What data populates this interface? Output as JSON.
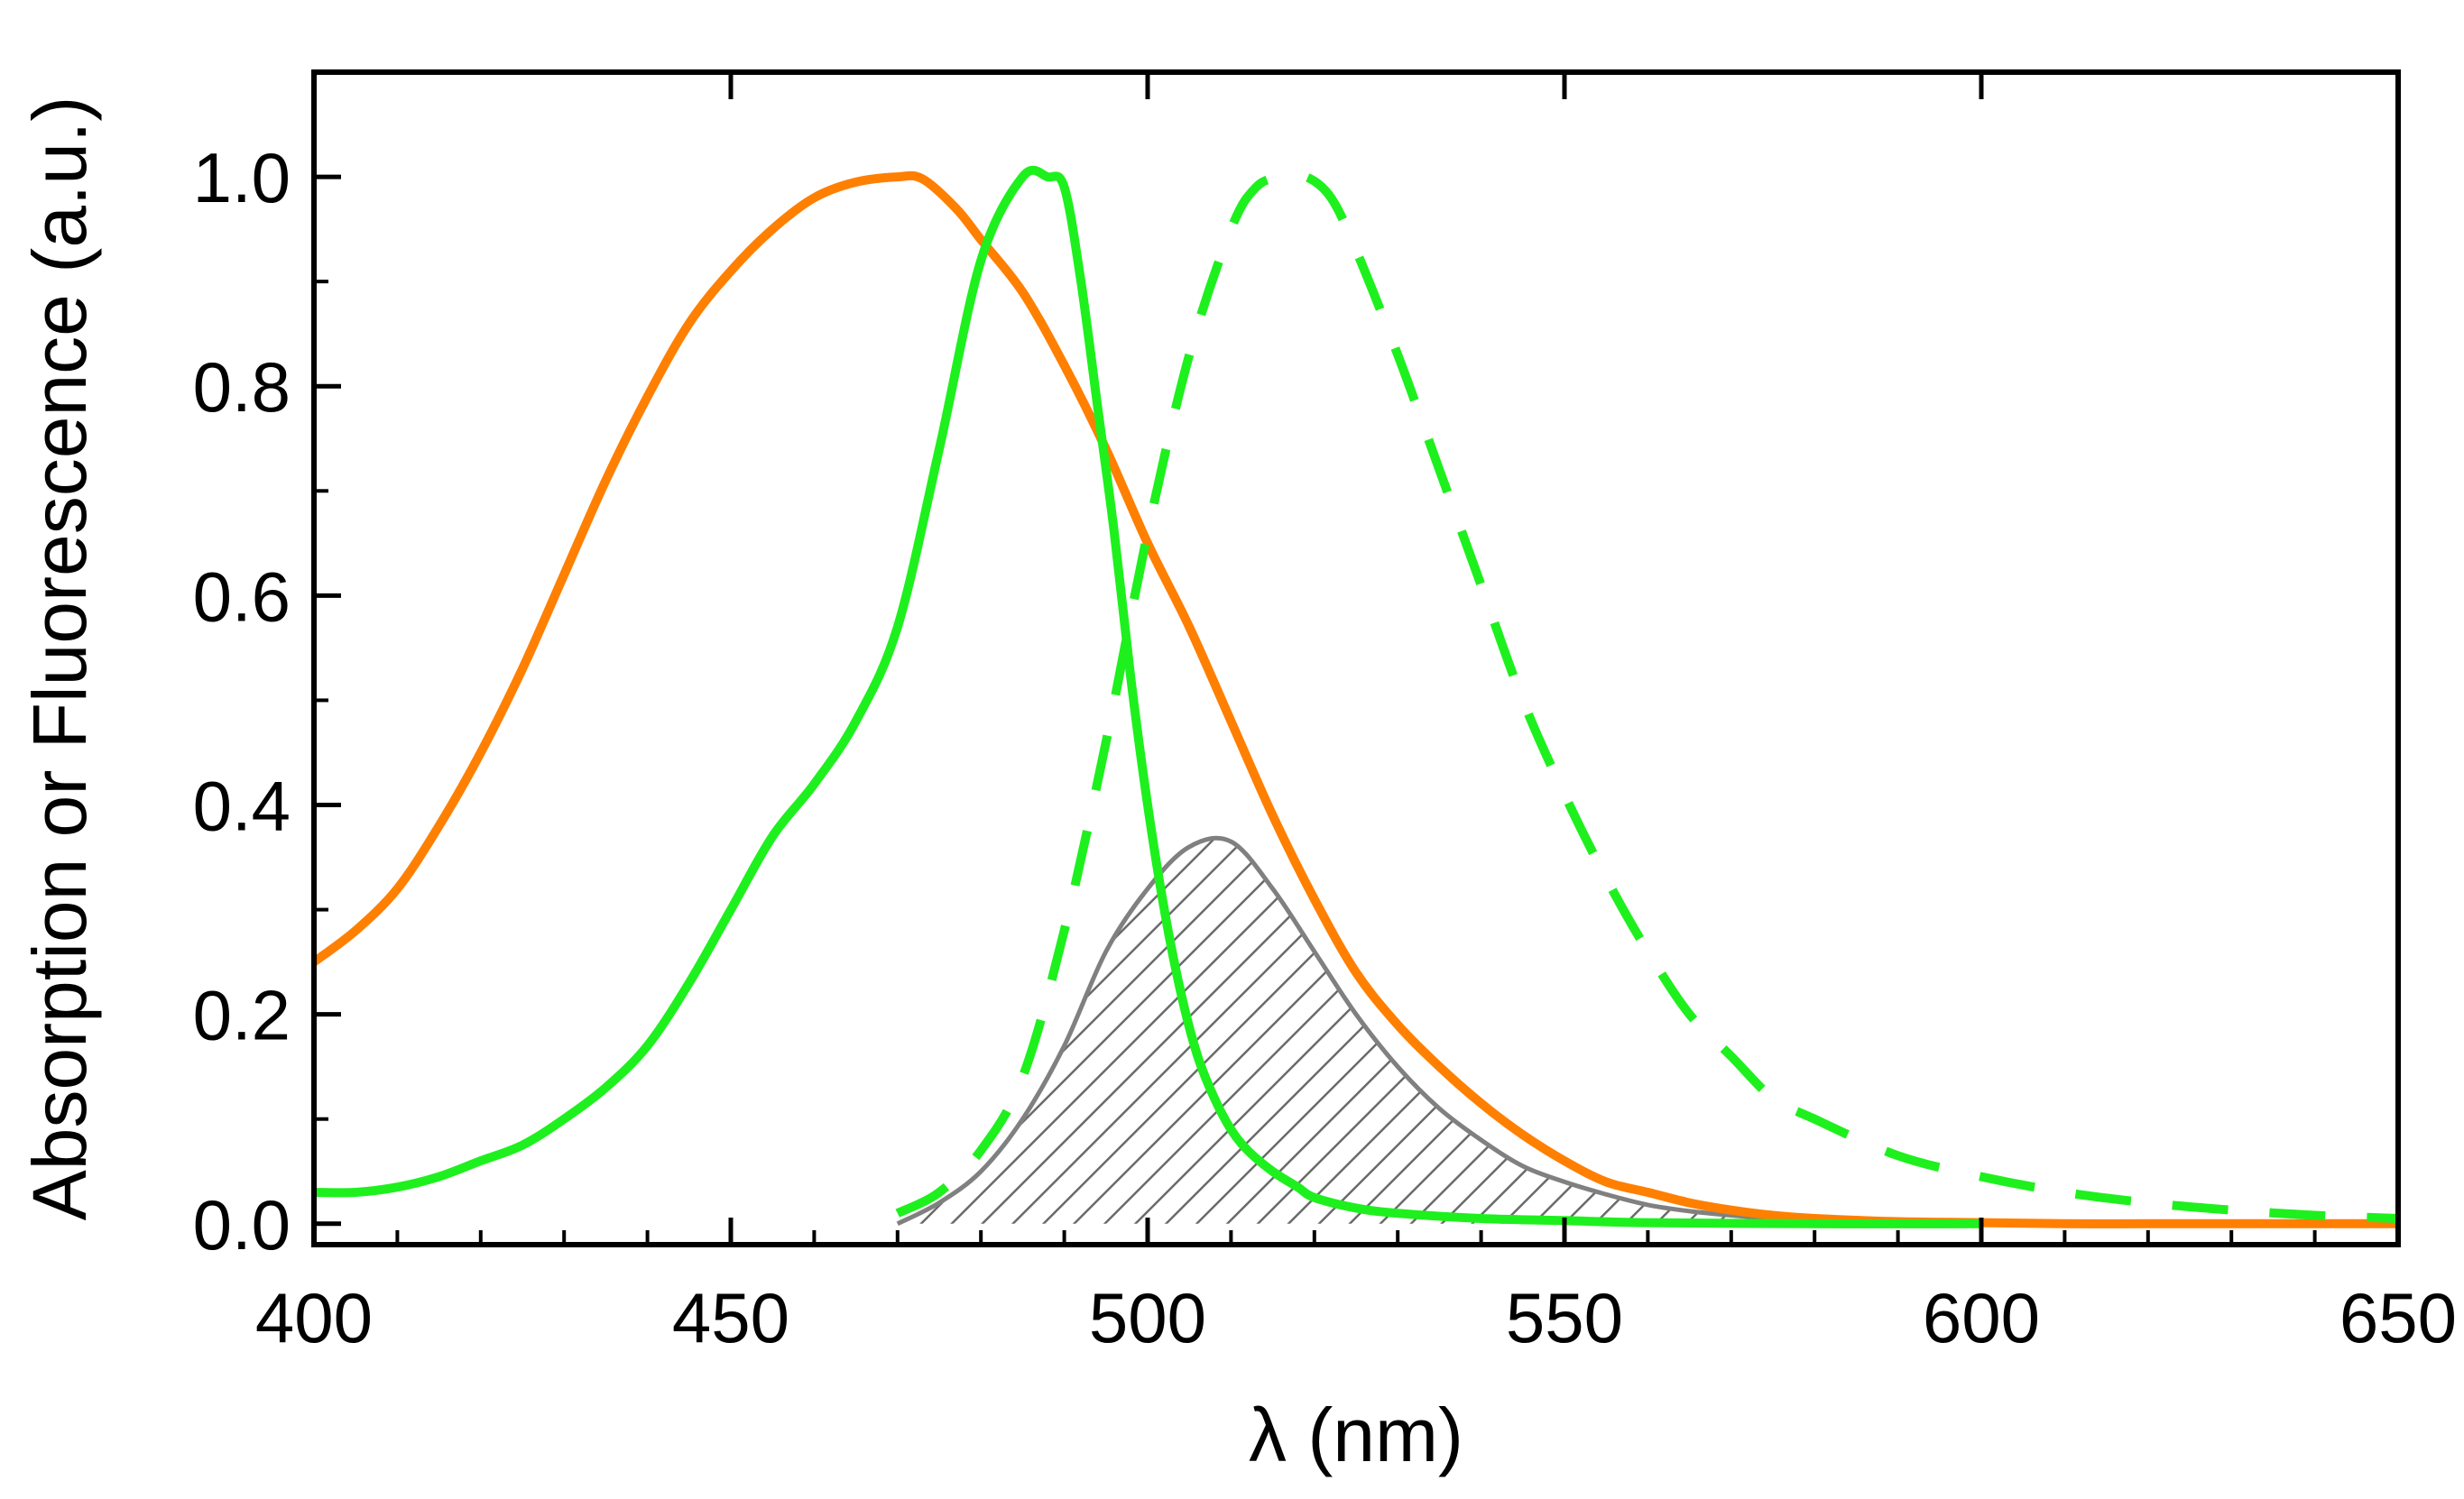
{
  "chart_data": {
    "type": "line",
    "title": "",
    "xlabel": "λ (nm)",
    "ylabel": "Absorption or Fluorescence (a.u.)",
    "xlim": [
      400,
      650
    ],
    "ylim": [
      -0.02,
      1.1
    ],
    "x_ticks": [
      400,
      450,
      500,
      550,
      600,
      650
    ],
    "x_tick_labels": [
      "400",
      "450",
      "500",
      "550",
      "600",
      "650"
    ],
    "y_ticks": [
      0.0,
      0.2,
      0.4,
      0.6,
      0.8,
      1.0
    ],
    "y_tick_labels": [
      "0.0",
      "0.2",
      "0.4",
      "0.6",
      "0.8",
      "1.0"
    ],
    "grid": false,
    "legend": "none",
    "series": [
      {
        "name": "orange absorption",
        "color": "#ff7f00",
        "style": "solid",
        "x": [
          400,
          405,
          410,
          415,
          420,
          425,
          430,
          435,
          440,
          445,
          450,
          455,
          460,
          465,
          470,
          473,
          477,
          480,
          485,
          490,
          495,
          500,
          505,
          510,
          515,
          520,
          525,
          530,
          535,
          540,
          545,
          550,
          555,
          560,
          565,
          570,
          575,
          580,
          590,
          600,
          610,
          620,
          630,
          640,
          650
        ],
        "y": [
          0.25,
          0.28,
          0.32,
          0.38,
          0.45,
          0.53,
          0.62,
          0.71,
          0.79,
          0.86,
          0.91,
          0.95,
          0.98,
          0.995,
          1.0,
          0.998,
          0.97,
          0.94,
          0.89,
          0.82,
          0.74,
          0.65,
          0.57,
          0.48,
          0.39,
          0.31,
          0.24,
          0.19,
          0.15,
          0.115,
          0.085,
          0.06,
          0.04,
          0.03,
          0.02,
          0.013,
          0.008,
          0.005,
          0.002,
          0.001,
          0.0,
          0.0,
          0.0,
          0.0,
          0.0
        ]
      },
      {
        "name": "green absorption",
        "color": "#1ef01e",
        "style": "solid",
        "x": [
          400,
          405,
          410,
          415,
          420,
          425,
          430,
          435,
          440,
          445,
          450,
          455,
          460,
          465,
          470,
          475,
          480,
          485,
          488,
          490,
          492,
          494,
          496,
          498,
          500,
          502,
          504,
          506,
          508,
          510,
          512,
          515,
          518,
          520,
          525,
          530,
          540,
          550,
          560,
          580,
          600
        ],
        "y": [
          0.03,
          0.03,
          0.035,
          0.045,
          0.06,
          0.075,
          0.1,
          0.13,
          0.17,
          0.23,
          0.3,
          0.37,
          0.42,
          0.48,
          0.57,
          0.74,
          0.92,
          1.0,
          1.0,
          0.99,
          0.9,
          0.78,
          0.66,
          0.52,
          0.4,
          0.3,
          0.22,
          0.16,
          0.12,
          0.09,
          0.07,
          0.05,
          0.035,
          0.025,
          0.015,
          0.01,
          0.005,
          0.003,
          0.001,
          0.0,
          0.0
        ]
      },
      {
        "name": "green fluorescence",
        "color": "#1ef01e",
        "style": "dashed",
        "x": [
          470,
          475,
          480,
          485,
          490,
          495,
          500,
          505,
          510,
          513,
          516,
          519,
          522,
          525,
          530,
          535,
          540,
          545,
          550,
          555,
          560,
          565,
          570,
          575,
          580,
          590,
          600,
          610,
          620,
          630,
          640,
          650
        ],
        "y": [
          0.01,
          0.03,
          0.07,
          0.14,
          0.28,
          0.46,
          0.66,
          0.83,
          0.95,
          0.99,
          1.0,
          1.0,
          0.98,
          0.93,
          0.83,
          0.72,
          0.61,
          0.5,
          0.41,
          0.33,
          0.26,
          0.2,
          0.16,
          0.12,
          0.1,
          0.065,
          0.045,
          0.03,
          0.02,
          0.013,
          0.008,
          0.005
        ]
      },
      {
        "name": "overlap integral",
        "color": "#808080",
        "style": "hatched-fill",
        "x": [
          470,
          475,
          480,
          485,
          490,
          495,
          500,
          505,
          510,
          515,
          520,
          525,
          530,
          535,
          540,
          545,
          550,
          555,
          560,
          565,
          570,
          575,
          580,
          590,
          598
        ],
        "y": [
          0.0,
          0.02,
          0.05,
          0.1,
          0.17,
          0.26,
          0.32,
          0.36,
          0.365,
          0.32,
          0.26,
          0.2,
          0.15,
          0.11,
          0.08,
          0.055,
          0.04,
          0.028,
          0.018,
          0.012,
          0.008,
          0.005,
          0.003,
          0.001,
          0.0
        ]
      }
    ]
  }
}
